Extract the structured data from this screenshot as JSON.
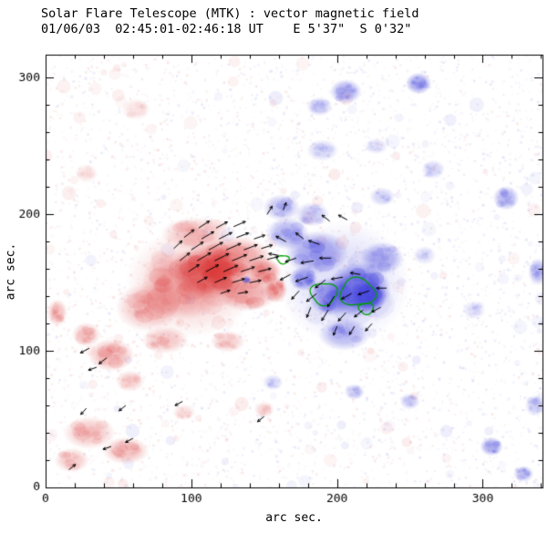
{
  "header": {
    "line1": "Solar Flare Telescope (MTK) : vector magnetic field",
    "line2": "01/06/03  02:45:01-02:46:18 UT    E 5'37\"  S 0'32\""
  },
  "chart_data": {
    "type": "heatmap",
    "title": "Solar Flare Telescope (MTK) : vector magnetic field",
    "subtitle": "01/06/03  02:45:01-02:46:18 UT    E 5'37\"  S 0'32\"",
    "xlabel": "arc sec.",
    "ylabel": "arc sec.",
    "xlim": [
      0,
      341
    ],
    "ylim": [
      0,
      317
    ],
    "xticks": [
      0,
      100,
      200,
      300
    ],
    "yticks": [
      0,
      100,
      200,
      300
    ],
    "minor_tick": 20,
    "legend": "none",
    "grid": false,
    "colors": {
      "negative": "#DC3C3C",
      "positive": "#4444DC",
      "contour": "#00A000",
      "axis": "#000000",
      "arrow": "#000000"
    },
    "noise": {
      "seed": 42,
      "speckles": 4200,
      "splotches": 170
    },
    "blobs": [
      [
        100,
        150,
        45,
        40,
        "N",
        0.22
      ],
      [
        95,
        148,
        30,
        25,
        "N",
        0.4
      ],
      [
        112,
        158,
        26,
        20,
        "N",
        0.72
      ],
      [
        118,
        160,
        14,
        11,
        "N",
        0.85
      ],
      [
        130,
        168,
        26,
        16,
        "N",
        0.5
      ],
      [
        138,
        143,
        22,
        14,
        "N",
        0.45
      ],
      [
        70,
        132,
        22,
        18,
        "N",
        0.32
      ],
      [
        103,
        186,
        24,
        12,
        "N",
        0.3
      ],
      [
        150,
        158,
        12,
        10,
        "N",
        0.55
      ],
      [
        158,
        145,
        8,
        10,
        "N",
        0.5
      ],
      [
        82,
        108,
        16,
        10,
        "N",
        0.3
      ],
      [
        45,
        97,
        16,
        12,
        "N",
        0.38
      ],
      [
        28,
        112,
        10,
        9,
        "N",
        0.3
      ],
      [
        58,
        78,
        10,
        8,
        "N",
        0.24
      ],
      [
        30,
        40,
        18,
        12,
        "N",
        0.3
      ],
      [
        55,
        27,
        16,
        10,
        "N",
        0.34
      ],
      [
        18,
        20,
        12,
        9,
        "N",
        0.28
      ],
      [
        8,
        128,
        7,
        10,
        "N",
        0.34
      ],
      [
        150,
        57,
        7,
        6,
        "N",
        0.22
      ],
      [
        95,
        55,
        8,
        6,
        "N",
        0.18
      ],
      [
        125,
        107,
        12,
        8,
        "N",
        0.26
      ],
      [
        62,
        277,
        10,
        8,
        "N",
        0.15
      ],
      [
        28,
        230,
        8,
        7,
        "N",
        0.14
      ],
      [
        205,
        150,
        45,
        45,
        "P",
        0.18
      ],
      [
        215,
        145,
        22,
        20,
        "P",
        0.78
      ],
      [
        222,
        140,
        12,
        11,
        "P",
        0.9
      ],
      [
        196,
        140,
        16,
        14,
        "P",
        0.6
      ],
      [
        186,
        172,
        22,
        16,
        "P",
        0.48
      ],
      [
        166,
        186,
        15,
        12,
        "P",
        0.42
      ],
      [
        205,
        112,
        18,
        12,
        "P",
        0.38
      ],
      [
        231,
        168,
        15,
        12,
        "P",
        0.44
      ],
      [
        177,
        153,
        10,
        9,
        "P",
        0.55
      ],
      [
        162,
        205,
        13,
        10,
        "P",
        0.34
      ],
      [
        183,
        200,
        12,
        9,
        "P",
        0.3
      ],
      [
        206,
        290,
        11,
        9,
        "P",
        0.45
      ],
      [
        188,
        279,
        9,
        7,
        "P",
        0.28
      ],
      [
        256,
        296,
        9,
        8,
        "P",
        0.52
      ],
      [
        316,
        212,
        9,
        9,
        "P",
        0.42
      ],
      [
        338,
        158,
        7,
        10,
        "P",
        0.4
      ],
      [
        306,
        30,
        8,
        7,
        "P",
        0.48
      ],
      [
        328,
        10,
        7,
        6,
        "P",
        0.38
      ],
      [
        250,
        63,
        7,
        6,
        "P",
        0.28
      ],
      [
        212,
        70,
        7,
        6,
        "P",
        0.28
      ],
      [
        266,
        233,
        8,
        7,
        "P",
        0.24
      ],
      [
        190,
        247,
        11,
        8,
        "P",
        0.24
      ],
      [
        231,
        213,
        9,
        7,
        "P",
        0.24
      ],
      [
        156,
        77,
        7,
        6,
        "P",
        0.22
      ],
      [
        294,
        130,
        8,
        7,
        "P",
        0.18
      ],
      [
        336,
        60,
        7,
        8,
        "P",
        0.28
      ],
      [
        227,
        250,
        8,
        6,
        "P",
        0.18
      ],
      [
        260,
        170,
        8,
        7,
        "P",
        0.18
      ],
      [
        138,
        152,
        3,
        3,
        "P",
        0.6
      ]
    ],
    "contours": [
      [
        191,
        142,
        9,
        8
      ],
      [
        214,
        143,
        12,
        10
      ],
      [
        163,
        167,
        4,
        3
      ],
      [
        220,
        131,
        5,
        4
      ]
    ],
    "arrows": [
      [
        105,
        190,
        35,
        9
      ],
      [
        117,
        190,
        30,
        9
      ],
      [
        129,
        191,
        25,
        9
      ],
      [
        95,
        183,
        40,
        9
      ],
      [
        107,
        182,
        32,
        10
      ],
      [
        119,
        182,
        28,
        10
      ],
      [
        131,
        183,
        22,
        9
      ],
      [
        143,
        182,
        20,
        8
      ],
      [
        88,
        175,
        45,
        8
      ],
      [
        100,
        174,
        35,
        10
      ],
      [
        112,
        174,
        30,
        11
      ],
      [
        124,
        174,
        25,
        11
      ],
      [
        136,
        174,
        22,
        10
      ],
      [
        148,
        175,
        18,
        8
      ],
      [
        92,
        166,
        40,
        9
      ],
      [
        104,
        166,
        32,
        11
      ],
      [
        116,
        166,
        28,
        11
      ],
      [
        128,
        166,
        24,
        11
      ],
      [
        140,
        166,
        20,
        10
      ],
      [
        152,
        167,
        15,
        8
      ],
      [
        98,
        158,
        35,
        9
      ],
      [
        110,
        158,
        30,
        10
      ],
      [
        122,
        158,
        25,
        11
      ],
      [
        134,
        158,
        20,
        10
      ],
      [
        146,
        158,
        15,
        9
      ],
      [
        104,
        150,
        30,
        8
      ],
      [
        116,
        150,
        25,
        9
      ],
      [
        128,
        150,
        18,
        9
      ],
      [
        140,
        150,
        12,
        8
      ],
      [
        120,
        142,
        20,
        7
      ],
      [
        132,
        142,
        10,
        7
      ],
      [
        152,
        200,
        60,
        7
      ],
      [
        163,
        203,
        70,
        6
      ],
      [
        165,
        180,
        150,
        8
      ],
      [
        177,
        182,
        140,
        7
      ],
      [
        188,
        178,
        160,
        8
      ],
      [
        160,
        170,
        170,
        7
      ],
      [
        172,
        168,
        200,
        8
      ],
      [
        184,
        166,
        190,
        9
      ],
      [
        196,
        168,
        180,
        8
      ],
      [
        168,
        156,
        210,
        8
      ],
      [
        180,
        154,
        200,
        9
      ],
      [
        192,
        152,
        220,
        9
      ],
      [
        204,
        154,
        190,
        8
      ],
      [
        216,
        156,
        170,
        7
      ],
      [
        174,
        144,
        230,
        8
      ],
      [
        186,
        142,
        220,
        9
      ],
      [
        198,
        140,
        240,
        9
      ],
      [
        210,
        142,
        210,
        8
      ],
      [
        222,
        144,
        200,
        8
      ],
      [
        234,
        146,
        180,
        7
      ],
      [
        182,
        132,
        250,
        8
      ],
      [
        194,
        130,
        240,
        9
      ],
      [
        206,
        128,
        230,
        8
      ],
      [
        218,
        130,
        220,
        8
      ],
      [
        230,
        132,
        210,
        7
      ],
      [
        200,
        118,
        250,
        7
      ],
      [
        212,
        118,
        240,
        7
      ],
      [
        224,
        120,
        230,
        7
      ],
      [
        195,
        195,
        140,
        7
      ],
      [
        207,
        196,
        150,
        7
      ],
      [
        30,
        102,
        210,
        7
      ],
      [
        42,
        95,
        220,
        7
      ],
      [
        35,
        88,
        200,
        6
      ],
      [
        55,
        60,
        220,
        6
      ],
      [
        28,
        58,
        230,
        6
      ],
      [
        60,
        36,
        210,
        6
      ],
      [
        45,
        30,
        200,
        6
      ],
      [
        16,
        13,
        40,
        6
      ],
      [
        150,
        52,
        220,
        6
      ],
      [
        94,
        63,
        210,
        6
      ]
    ]
  }
}
